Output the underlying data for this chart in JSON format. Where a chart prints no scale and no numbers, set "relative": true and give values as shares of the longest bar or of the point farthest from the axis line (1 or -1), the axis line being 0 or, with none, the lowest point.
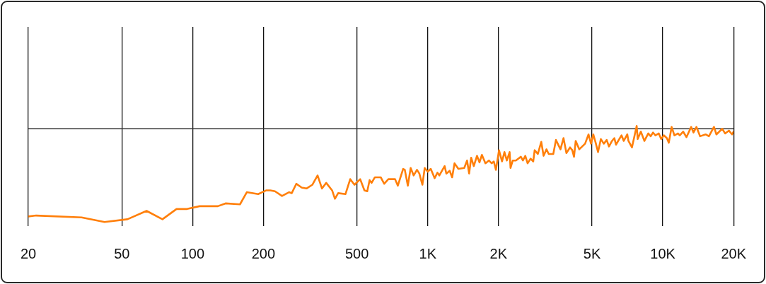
{
  "chart_data": {
    "type": "line",
    "relative": true,
    "log": "x",
    "color": "#ff7f0a",
    "grid": "x",
    "xlim": [
      20,
      20000
    ],
    "xticks": [
      20,
      50,
      100,
      200,
      500,
      {
        "value": 1000,
        "label": "1K"
      },
      {
        "value": 2000,
        "label": "2K"
      },
      {
        "value": 5000,
        "label": "5K"
      },
      {
        "value": 10000,
        "label": "10K"
      },
      {
        "value": 20000,
        "label": "20K"
      }
    ],
    "ref_lines": [
      {
        "axis": "y",
        "value": 0,
        "color": "#333333"
      }
    ],
    "x": [
      20,
      21.6,
      33.7,
      42.2,
      52.8,
      63.7,
      74.4,
      85.4,
      94.7,
      107,
      128,
      138,
      159,
      170,
      190,
      206,
      214,
      224,
      240,
      257,
      264,
      276,
      291,
      305,
      323,
      340,
      355,
      370,
      392,
      403,
      416,
      447,
      468,
      488,
      516,
      538,
      553,
      566,
      577,
      596,
      631,
      653,
      680,
      726,
      746,
      786,
      799,
      823,
      846,
      871,
      900,
      921,
      949,
      971,
      1000,
      1030,
      1070,
      1100,
      1120,
      1180,
      1200,
      1240,
      1270,
      1300,
      1350,
      1430,
      1470,
      1500,
      1530,
      1570,
      1620,
      1660,
      1700,
      1760,
      1820,
      1870,
      1910,
      1950,
      2010,
      2070,
      2120,
      2170,
      2230,
      2250,
      2300,
      2370,
      2490,
      2540,
      2600,
      2660,
      2740,
      2810,
      2850,
      2940,
      3040,
      3110,
      3200,
      3270,
      3420,
      3510,
      3670,
      3780,
      3890,
      4030,
      4120,
      4190,
      4260,
      4410,
      4670,
      4830,
      4950,
      5060,
      5180,
      5300,
      5450,
      5610,
      5770,
      5900,
      6080,
      6220,
      6320,
      6670,
      6820,
      7060,
      7140,
      7390,
      7740,
      7820,
      8060,
      8350,
      8670,
      8880,
      9080,
      9290,
      9610,
      9840,
      10100,
      10400,
      10600,
      10900,
      11200,
      11600,
      11800,
      12200,
      12600,
      13200,
      13500,
      13900,
      14400,
      15200,
      15700,
      16500,
      16900,
      17900,
      18400,
      19100,
      19700,
      20000
    ],
    "values": [
      -0.94,
      -0.93,
      -0.95,
      -1,
      -0.97,
      -0.88,
      -0.97,
      -0.86,
      -0.86,
      -0.83,
      -0.83,
      -0.8,
      -0.81,
      -0.68,
      -0.7,
      -0.66,
      -0.66,
      -0.67,
      -0.72,
      -0.68,
      -0.69,
      -0.59,
      -0.63,
      -0.64,
      -0.6,
      -0.5,
      -0.64,
      -0.58,
      -0.66,
      -0.75,
      -0.69,
      -0.7,
      -0.54,
      -0.6,
      -0.54,
      -0.66,
      -0.67,
      -0.55,
      -0.58,
      -0.52,
      -0.52,
      -0.59,
      -0.54,
      -0.54,
      -0.61,
      -0.43,
      -0.44,
      -0.61,
      -0.42,
      -0.5,
      -0.44,
      -0.48,
      -0.6,
      -0.42,
      -0.46,
      -0.43,
      -0.53,
      -0.47,
      -0.5,
      -0.4,
      -0.48,
      -0.45,
      -0.52,
      -0.37,
      -0.43,
      -0.42,
      -0.34,
      -0.48,
      -0.31,
      -0.4,
      -0.29,
      -0.36,
      -0.28,
      -0.37,
      -0.34,
      -0.37,
      -0.35,
      -0.44,
      -0.23,
      -0.35,
      -0.25,
      -0.34,
      -0.25,
      -0.42,
      -0.34,
      -0.34,
      -0.3,
      -0.34,
      -0.29,
      -0.37,
      -0.32,
      -0.35,
      -0.23,
      -0.27,
      -0.14,
      -0.29,
      -0.22,
      -0.27,
      -0.27,
      -0.12,
      -0.22,
      -0.1,
      -0.26,
      -0.2,
      -0.23,
      -0.3,
      -0.13,
      -0.22,
      -0.16,
      -0.06,
      -0.16,
      -0.06,
      -0.15,
      -0.25,
      -0.11,
      -0.16,
      -0.12,
      -0.19,
      -0.13,
      -0.1,
      -0.17,
      -0.07,
      -0.13,
      -0.06,
      -0.13,
      -0.2,
      0.03,
      -0.11,
      -0.03,
      -0.13,
      -0.05,
      -0.08,
      -0.04,
      -0.07,
      -0.05,
      -0.11,
      -0.07,
      -0.1,
      -0.15,
      0.02,
      -0.07,
      -0.05,
      -0.07,
      -0.03,
      -0.09,
      0.02,
      -0.04,
      0.02,
      -0.08,
      -0.06,
      -0.08,
      0.02,
      -0.06,
      0,
      -0.05,
      -0.02,
      -0.06,
      -0.03
    ]
  }
}
